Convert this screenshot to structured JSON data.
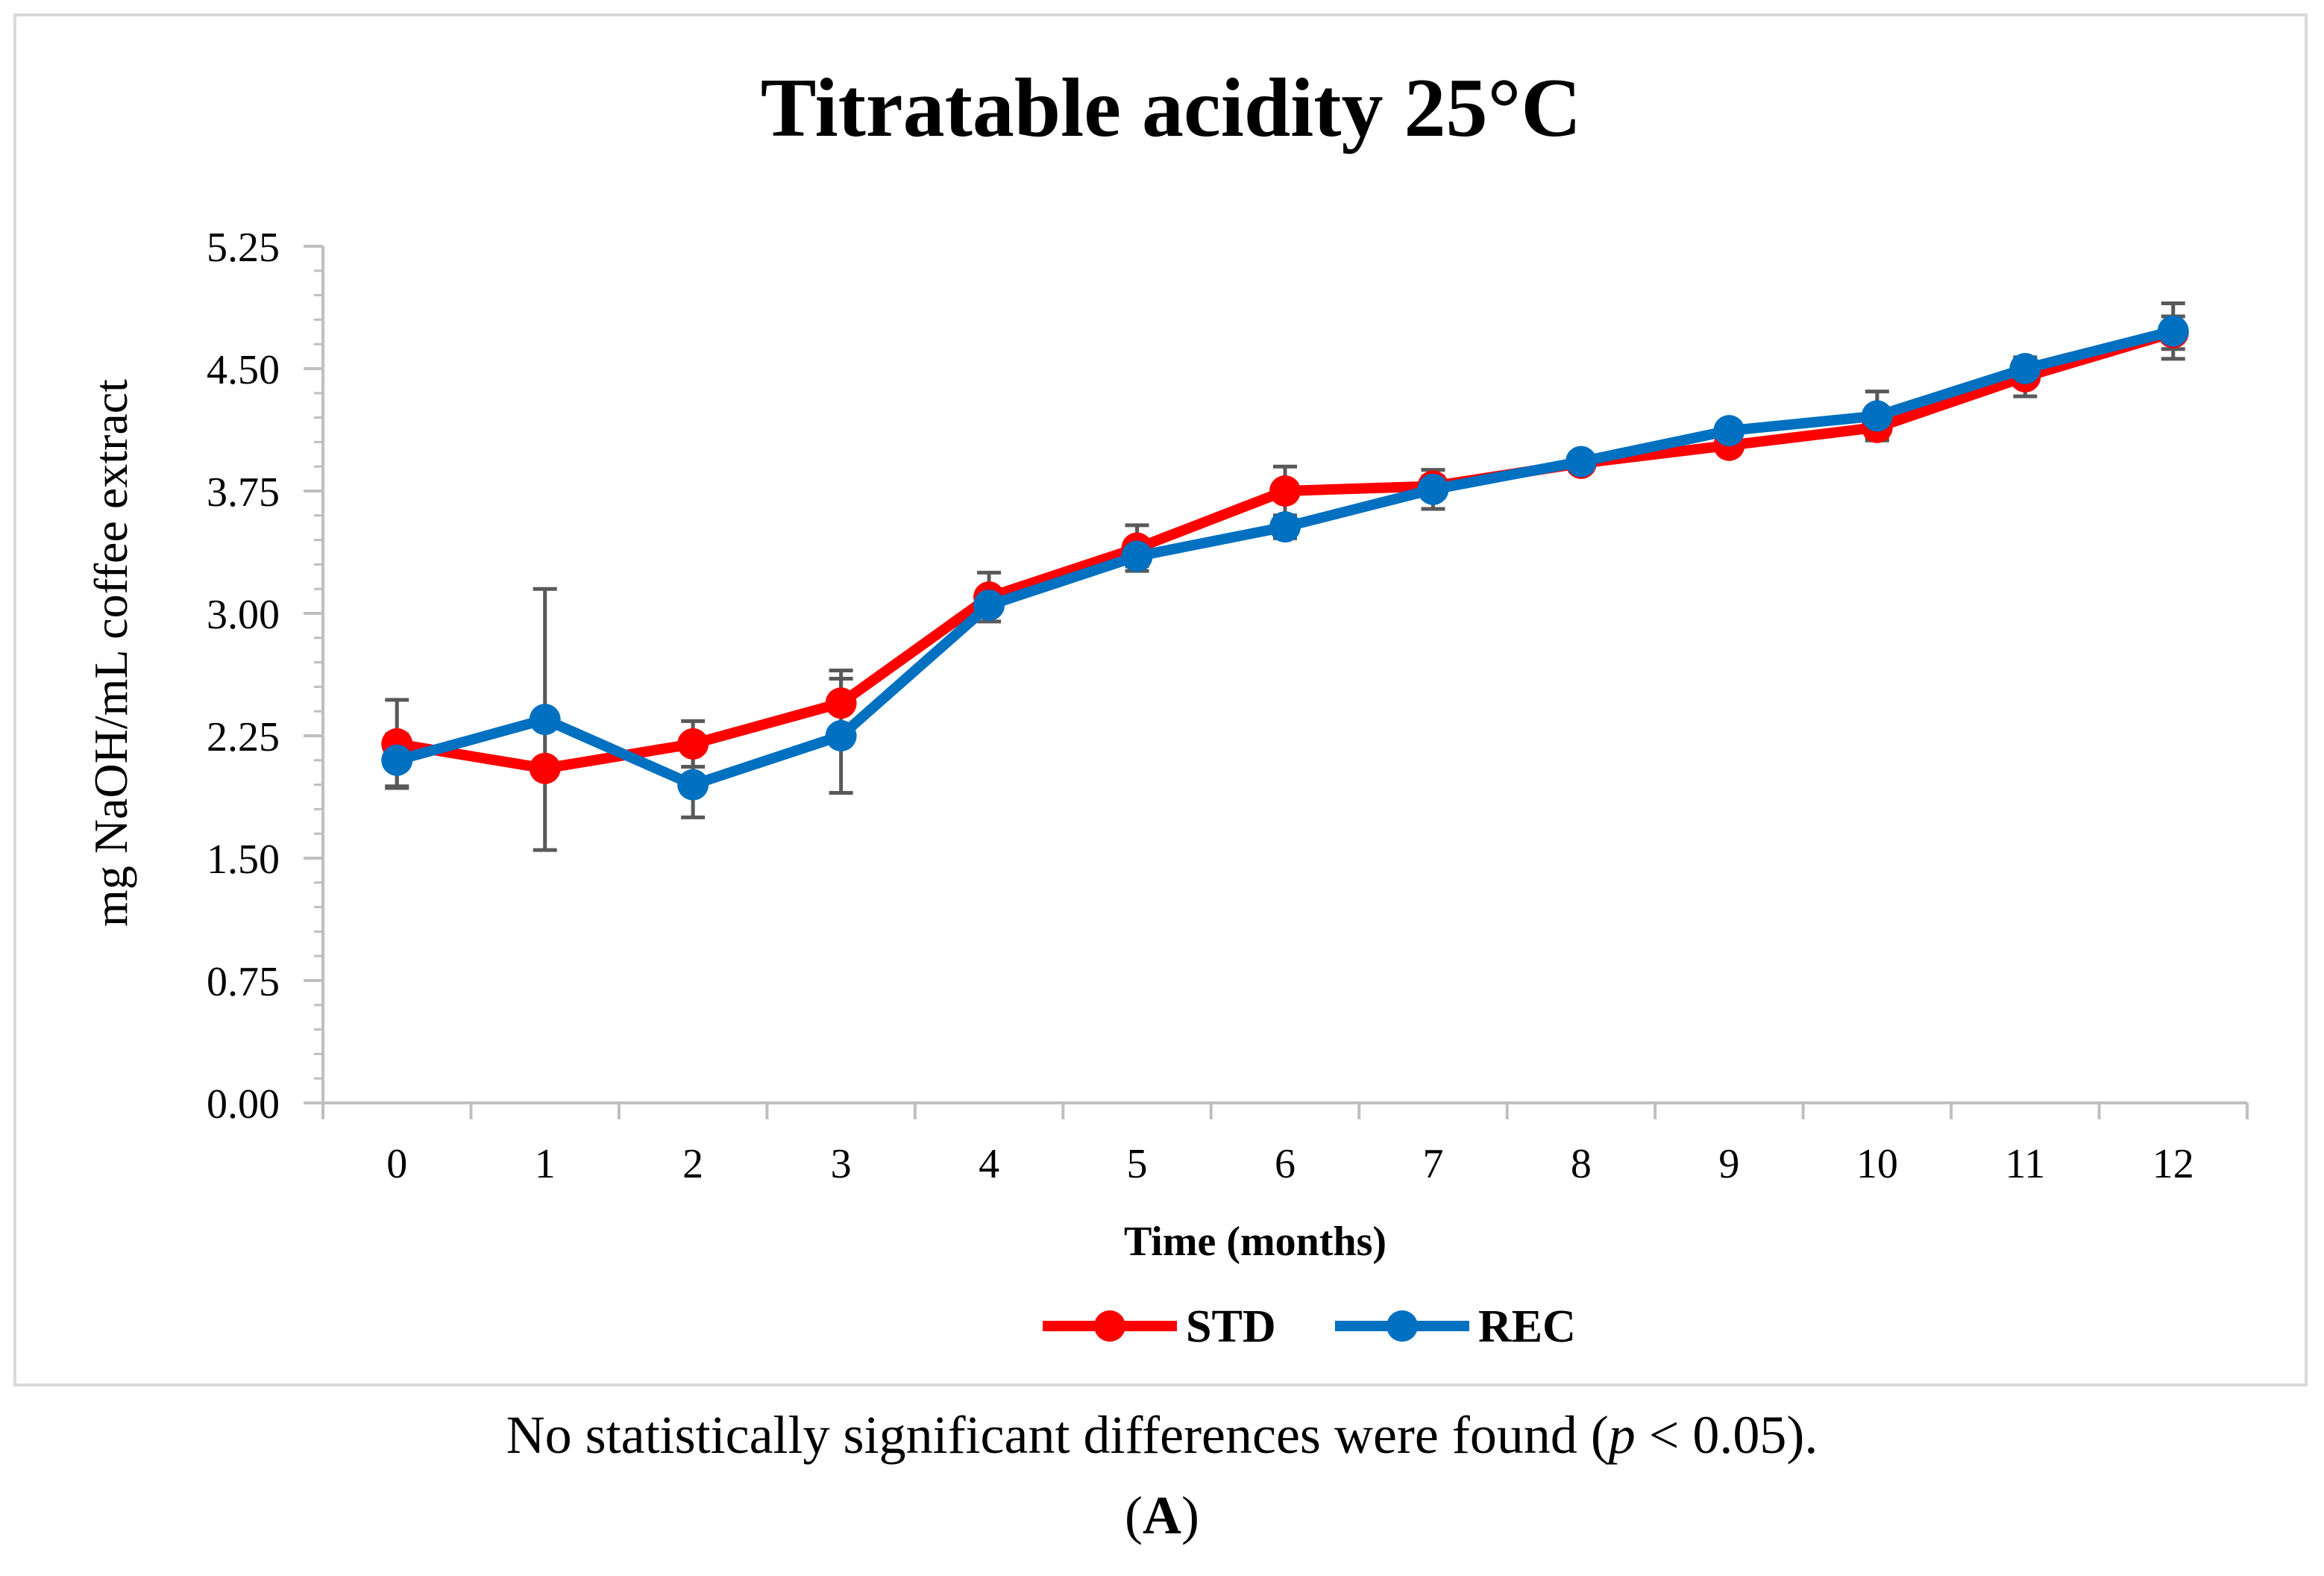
{
  "chart_data": {
    "type": "line",
    "title": "Titratable acidity 25°C",
    "xlabel": "Time (months)",
    "ylabel": "mg NaOH/mL coffee extract",
    "x": [
      0,
      1,
      2,
      3,
      4,
      5,
      6,
      7,
      8,
      9,
      10,
      11,
      12
    ],
    "x_tick_labels": [
      "0",
      "1",
      "2",
      "3",
      "4",
      "5",
      "6",
      "7",
      "8",
      "9",
      "10",
      "11",
      "12"
    ],
    "ylim": [
      0,
      5.25
    ],
    "y_ticks": [
      0,
      0.75,
      1.5,
      2.25,
      3.0,
      3.75,
      4.5,
      5.25
    ],
    "y_tick_labels": [
      "0.00",
      "0.75",
      "1.50",
      "2.25",
      "3.00",
      "3.75",
      "4.50",
      "5.25"
    ],
    "grid": false,
    "legend_position": "bottom-center",
    "series": [
      {
        "name": "STD",
        "color": "#ff0000",
        "values": [
          2.2,
          2.05,
          2.2,
          2.45,
          3.1,
          3.4,
          3.75,
          3.78,
          3.92,
          4.03,
          4.14,
          4.45,
          4.72
        ],
        "error": [
          0.27,
          0.0,
          0.14,
          0.2,
          0.15,
          0.14,
          0.15,
          0.06,
          0.05,
          0.05,
          0.07,
          0.12,
          0.1
        ]
      },
      {
        "name": "REC",
        "color": "#0070c0",
        "values": [
          2.1,
          2.35,
          1.95,
          2.25,
          3.05,
          3.35,
          3.53,
          3.76,
          3.93,
          4.12,
          4.21,
          4.5,
          4.73
        ],
        "error": [
          0.16,
          0.8,
          0.2,
          0.35,
          0.05,
          0.06,
          0.07,
          0.12,
          0.03,
          0.03,
          0.15,
          0.06,
          0.17
        ]
      }
    ]
  },
  "caption": {
    "note_before": "No statistically significant differences were found (",
    "note_p": "p",
    "note_after": " < 0.05).",
    "panel_open": "(",
    "panel_letter": "A",
    "panel_close": ")"
  }
}
